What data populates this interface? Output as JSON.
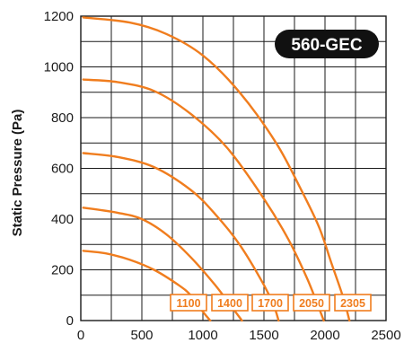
{
  "chart_data": {
    "type": "line",
    "title": "",
    "badge": "560-GEC",
    "xlabel": "",
    "ylabel": "Static Pressure (Pa)",
    "xlim": [
      0,
      2500
    ],
    "ylim": [
      0,
      1200
    ],
    "x_ticks": [
      0,
      500,
      1000,
      1500,
      2000,
      2500
    ],
    "y_ticks": [
      0,
      200,
      400,
      600,
      800,
      1000,
      1200
    ],
    "x_tick_labels": [
      "0",
      "500",
      "1000",
      "1500",
      "2000",
      "2500"
    ],
    "y_tick_labels": [
      "0",
      "200",
      "400",
      "600",
      "800",
      "1000",
      "1200"
    ],
    "grid": true,
    "line_color": "#f07d1e",
    "series": [
      {
        "name": "1100",
        "points": [
          [
            20,
            275
          ],
          [
            200,
            265
          ],
          [
            400,
            240
          ],
          [
            600,
            200
          ],
          [
            800,
            140
          ],
          [
            900,
            100
          ],
          [
            1000,
            35
          ],
          [
            1060,
            0
          ]
        ]
      },
      {
        "name": "1400",
        "points": [
          [
            20,
            445
          ],
          [
            300,
            425
          ],
          [
            500,
            400
          ],
          [
            700,
            340
          ],
          [
            900,
            250
          ],
          [
            1100,
            140
          ],
          [
            1250,
            45
          ],
          [
            1320,
            0
          ]
        ]
      },
      {
        "name": "1700",
        "points": [
          [
            20,
            660
          ],
          [
            300,
            645
          ],
          [
            600,
            605
          ],
          [
            900,
            515
          ],
          [
            1100,
            420
          ],
          [
            1300,
            300
          ],
          [
            1500,
            140
          ],
          [
            1580,
            60
          ],
          [
            1620,
            0
          ]
        ]
      },
      {
        "name": "2050",
        "points": [
          [
            20,
            950
          ],
          [
            300,
            940
          ],
          [
            600,
            905
          ],
          [
            900,
            815
          ],
          [
            1200,
            680
          ],
          [
            1500,
            480
          ],
          [
            1700,
            320
          ],
          [
            1850,
            170
          ],
          [
            1950,
            50
          ],
          [
            1990,
            0
          ]
        ]
      },
      {
        "name": "2305",
        "points": [
          [
            20,
            1195
          ],
          [
            400,
            1175
          ],
          [
            700,
            1130
          ],
          [
            1000,
            1045
          ],
          [
            1300,
            900
          ],
          [
            1600,
            700
          ],
          [
            1800,
            520
          ],
          [
            1950,
            370
          ],
          [
            2050,
            230
          ],
          [
            2150,
            90
          ],
          [
            2200,
            0
          ]
        ]
      }
    ],
    "rpm_labels": [
      "1100",
      "1400",
      "1700",
      "2050",
      "2305"
    ]
  }
}
